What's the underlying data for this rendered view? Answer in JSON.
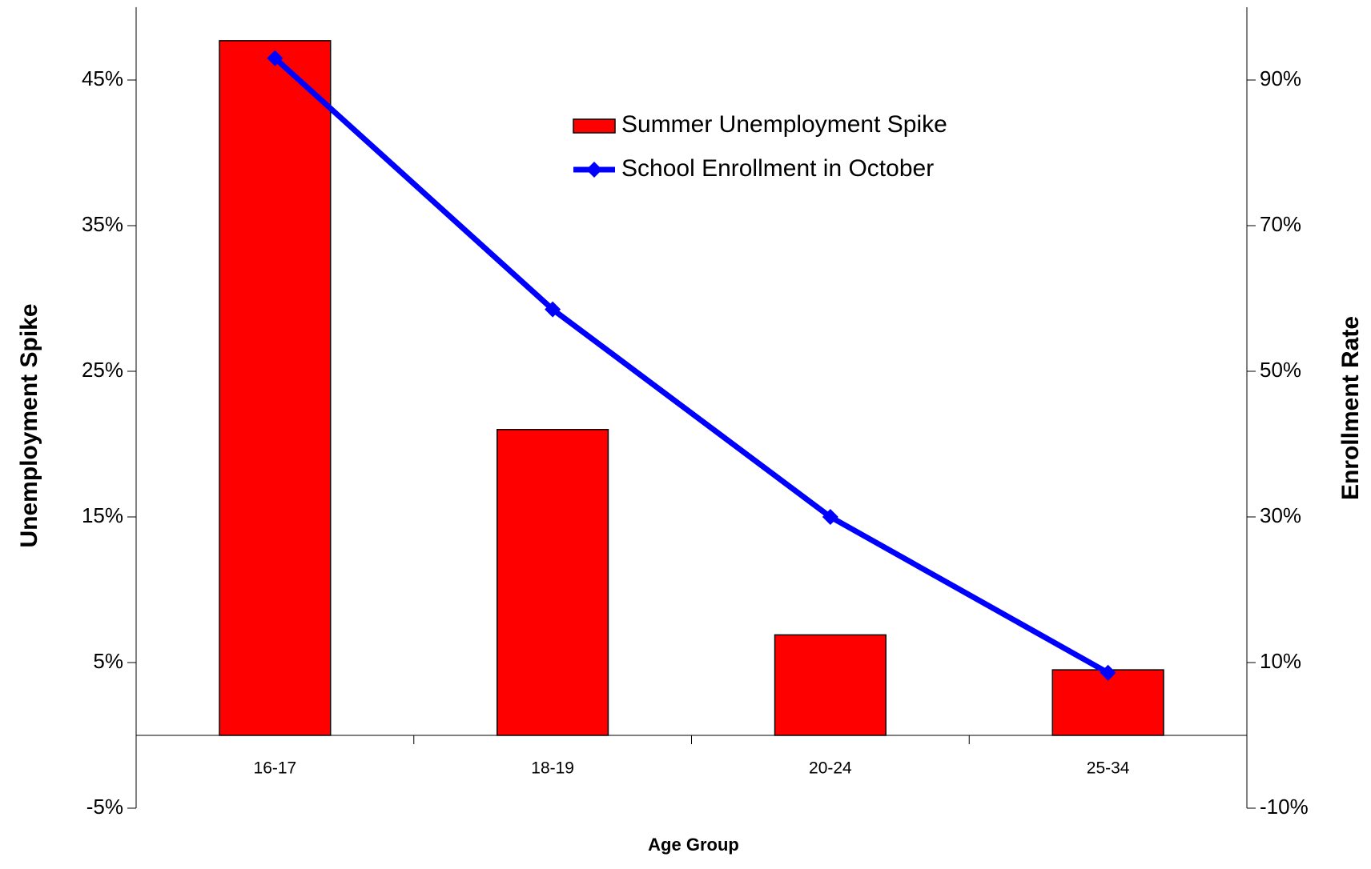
{
  "chart_data": {
    "type": "combo",
    "x_label": "Age Group",
    "y_label": "Unemployment Spike",
    "y2_label": "Enrollment Rate",
    "categories": [
      "16-17",
      "18-19",
      "20-24",
      "25-34"
    ],
    "series": [
      {
        "name": "Summer Unemployment Spike",
        "type": "bar",
        "color": "#ff0000",
        "values": [
          47.7,
          21,
          6.9,
          4.5
        ]
      },
      {
        "name": "School Enrollment in October",
        "type": "line",
        "color": "#0000ff",
        "axis": "y2",
        "values": [
          93,
          58.5,
          30,
          8.6
        ]
      }
    ],
    "ylim": [
      -5,
      50
    ],
    "yticks": [
      {
        "value": -5,
        "label": "-5%"
      },
      {
        "value": 5,
        "label": "5%"
      },
      {
        "value": 15,
        "label": "15%"
      },
      {
        "value": 25,
        "label": "25%"
      },
      {
        "value": 35,
        "label": "35%"
      },
      {
        "value": 45,
        "label": "45%"
      }
    ],
    "y2lim": [
      -10,
      100
    ],
    "y2ticks": [
      {
        "value": -10,
        "label": "-10%"
      },
      {
        "value": 10,
        "label": "10%"
      },
      {
        "value": 30,
        "label": "30%"
      },
      {
        "value": 50,
        "label": "50%"
      },
      {
        "value": 70,
        "label": "70%"
      },
      {
        "value": 90,
        "label": "90%"
      }
    ],
    "grid": false,
    "legend": "top-center"
  }
}
